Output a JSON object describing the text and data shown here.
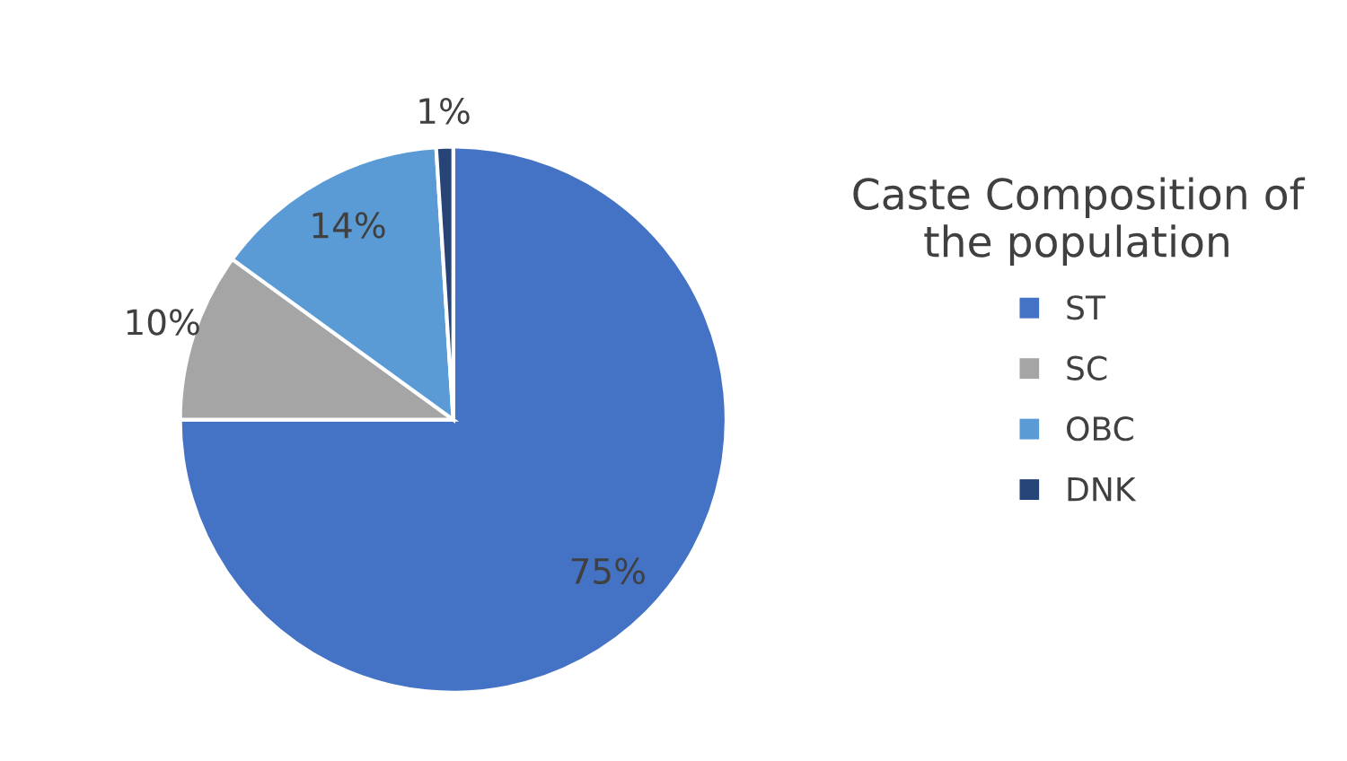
{
  "chart_data": {
    "type": "pie",
    "legend_title": "Caste Composition of\nthe population",
    "categories": [
      "ST",
      "SC",
      "OBC",
      "DNK"
    ],
    "values": [
      75,
      10,
      14,
      1
    ],
    "value_labels": [
      "75%",
      "10%",
      "14%",
      "1%"
    ],
    "colors": [
      "#4472c4",
      "#a5a5a5",
      "#5b9bd5",
      "#264478"
    ],
    "legend": "right"
  }
}
